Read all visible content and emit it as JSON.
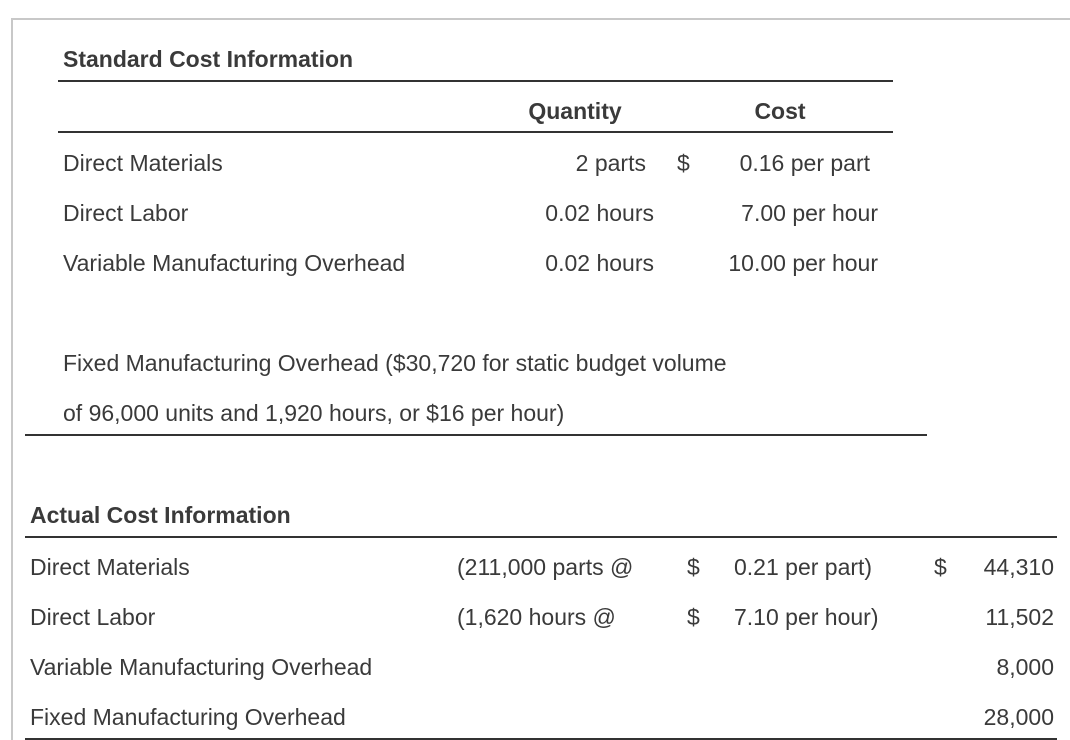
{
  "standard": {
    "title": "Standard Cost Information",
    "headers": [
      "Quantity",
      "Cost"
    ],
    "rows": [
      {
        "label": "Direct Materials",
        "quantity": "2 parts",
        "currency": "$",
        "cost": "0.16 per part"
      },
      {
        "label": "Direct Labor",
        "quantity": "0.02 hours",
        "cost": "7.00 per hour"
      },
      {
        "label": "Variable Manufacturing Overhead",
        "quantity": "0.02 hours",
        "cost": "10.00 per hour"
      }
    ],
    "note": [
      "Fixed Manufacturing Overhead ($30,720 for static budget volume",
      "of 96,000 units and 1,920 hours, or $16 per hour)"
    ]
  },
  "actual": {
    "title": "Actual Cost Information",
    "rows": [
      {
        "label": "Direct Materials",
        "detail": "(211,000 parts @",
        "currency": "$",
        "rate": "0.21 per part)",
        "total_currency": "$",
        "total": "44,310"
      },
      {
        "label": "Direct Labor",
        "detail": "(1,620 hours @",
        "currency": "$",
        "rate": "7.10 per hour)",
        "total": "11,502"
      },
      {
        "label": "Variable Manufacturing Overhead",
        "total": "8,000"
      },
      {
        "label": "Fixed Manufacturing Overhead",
        "total": "28,000"
      }
    ]
  }
}
